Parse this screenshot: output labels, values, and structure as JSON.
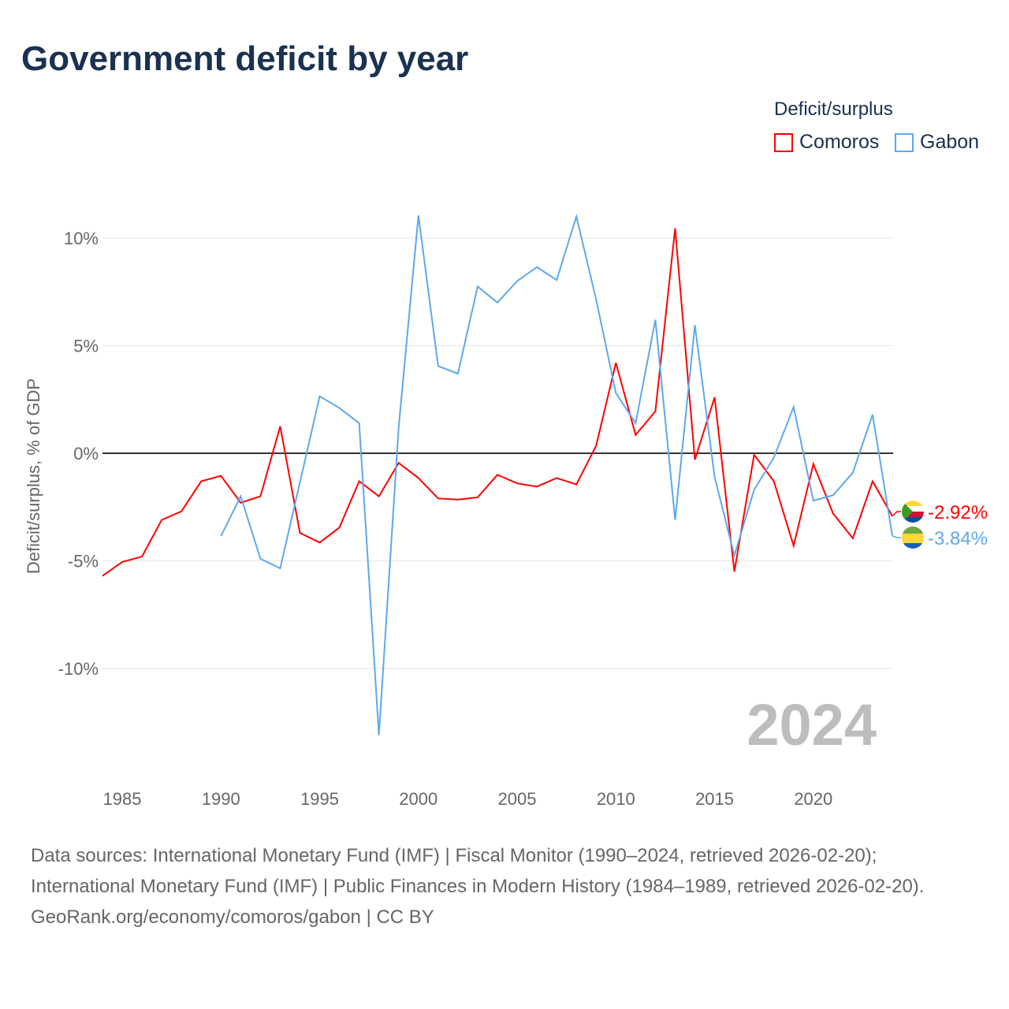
{
  "title": "Government deficit by year",
  "legend": {
    "title": "Deficit/surplus",
    "items": [
      "Comoros",
      "Gabon"
    ]
  },
  "sources": "Data sources: International Monetary Fund (IMF) | Fiscal Monitor (1990–2024, retrieved 2026-02-20); International Monetary Fund (IMF) | Public Finances in Modern History (1984–1989, retrieved 2026-02-20).",
  "credit": "GeoRank.org/economy/comoros/gabon | CC BY",
  "chart_data": {
    "type": "line",
    "title": "Government deficit by year",
    "ylabel": "Deficit/surplus, % of GDP",
    "xlim": [
      1984,
      2024
    ],
    "ylim": [
      -14,
      12
    ],
    "xticks": [
      1985,
      1990,
      1995,
      2000,
      2005,
      2010,
      2015,
      2020
    ],
    "yticks": [
      {
        "v": 10,
        "label": "10%"
      },
      {
        "v": 5,
        "label": "5%"
      },
      {
        "v": 0,
        "label": "0%"
      },
      {
        "v": -5,
        "label": "-5%"
      },
      {
        "v": -10,
        "label": "-10%"
      }
    ],
    "watermark": "2024",
    "series": [
      {
        "name": "Comoros",
        "color": "#ff0000",
        "end_label": "-2.92%",
        "start": 1984,
        "values": [
          -5.7,
          -5.05,
          -4.8,
          -3.1,
          -2.7,
          -1.3,
          -1.05,
          -2.3,
          -2.0,
          1.25,
          -3.7,
          -4.15,
          -3.45,
          -1.3,
          -2.0,
          -0.45,
          -1.15,
          -2.1,
          -2.15,
          -2.05,
          -1.0,
          -1.4,
          -1.55,
          -1.15,
          -1.45,
          0.35,
          4.2,
          0.85,
          1.95,
          10.45,
          -0.3,
          2.6,
          -5.5,
          -0.07,
          -1.3,
          -4.3,
          -0.5,
          -2.8,
          -3.95,
          -1.3,
          -2.92
        ]
      },
      {
        "name": "Gabon",
        "color": "#5ea8ed",
        "end_label": "-3.84%",
        "start": 1990,
        "values": [
          -3.85,
          -2.0,
          -4.9,
          -5.35,
          -1.35,
          2.65,
          2.1,
          1.4,
          -13.1,
          1.2,
          11.05,
          4.05,
          3.7,
          7.75,
          7.0,
          8.0,
          8.65,
          8.05,
          11.0,
          7.15,
          2.8,
          1.4,
          6.2,
          -3.1,
          5.95,
          -1.1,
          -4.75,
          -1.7,
          -0.2,
          2.15,
          -2.2,
          -1.95,
          -0.9,
          1.8,
          -3.84
        ]
      }
    ]
  }
}
